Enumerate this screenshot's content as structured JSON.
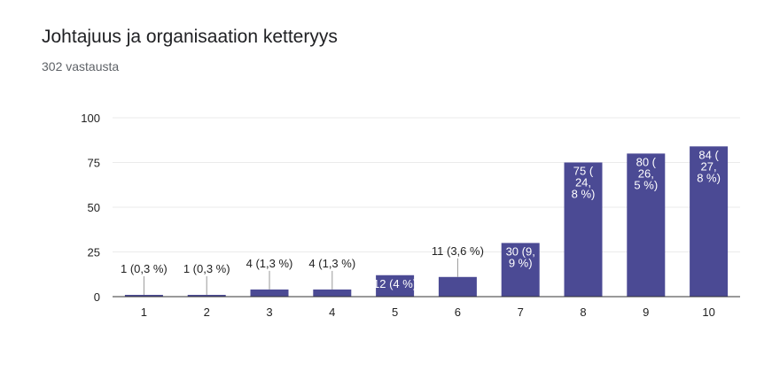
{
  "form": {
    "title": "Johtajuus ja organisaation ketteryys",
    "responses": "302 vastausta"
  },
  "colors": {
    "bar": "#4b4a94",
    "grid": "#ebebeb",
    "axis": "#333333"
  },
  "chart_data": {
    "type": "bar",
    "title": "",
    "xlabel": "",
    "ylabel": "",
    "categories": [
      "1",
      "2",
      "3",
      "4",
      "5",
      "6",
      "7",
      "8",
      "9",
      "10"
    ],
    "values": [
      1,
      1,
      4,
      4,
      12,
      11,
      30,
      75,
      80,
      84
    ],
    "data_labels": [
      "1 (0,3 %)",
      "1 (0,3 %)",
      "4 (1,3 %)",
      "4 (1,3 %)",
      "12 (4 %)",
      "11 (3,6 %)",
      "30 (9,\n9 %)",
      "75 (\n24,\n8 %)",
      "80 (\n26,\n5 %)",
      "84 (\n27,\n8 %)"
    ],
    "ylim": [
      0,
      100
    ],
    "yticks": [
      "0",
      "25",
      "50",
      "75",
      "100"
    ],
    "grid": true,
    "legend": "none"
  }
}
